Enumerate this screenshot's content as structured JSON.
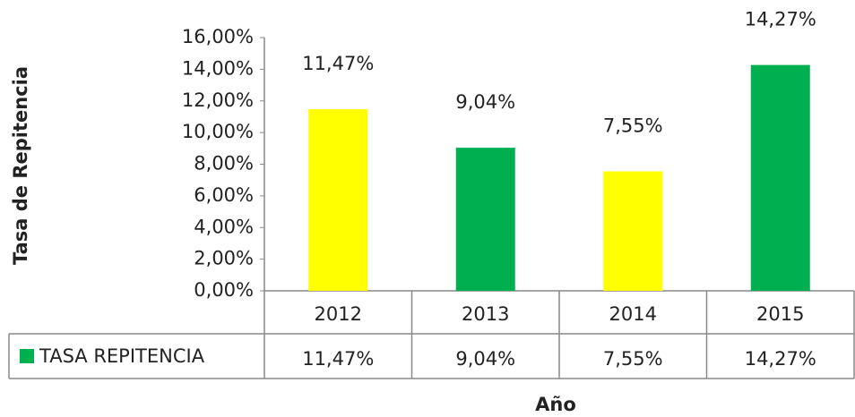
{
  "chart_data": {
    "type": "bar",
    "x_label": "Año",
    "y_label": "Tasa de Repitencia",
    "categories": [
      "2012",
      "2013",
      "2014",
      "2015"
    ],
    "series": [
      {
        "name": "TASA REPITENCIA",
        "color": "#00b050",
        "values": [
          11.47,
          9.04,
          7.55,
          14.27
        ],
        "value_labels": [
          "11,47%",
          "9,04%",
          "7,55%",
          "14,27%"
        ],
        "colors": [
          "#ffff00",
          "#00b050",
          "#ffff00",
          "#00b050"
        ]
      }
    ],
    "ylim": [
      0,
      16
    ],
    "yticks": [
      {
        "value": 0,
        "label": "0,00%"
      },
      {
        "value": 2,
        "label": "2,00%"
      },
      {
        "value": 4,
        "label": "4,00%"
      },
      {
        "value": 6,
        "label": "6,00%"
      },
      {
        "value": 8,
        "label": "8,00%"
      },
      {
        "value": 10,
        "label": "10,00%"
      },
      {
        "value": 12,
        "label": "12,00%"
      },
      {
        "value": 14,
        "label": "14,00%"
      },
      {
        "value": 16,
        "label": "16,00%"
      }
    ],
    "grid": false
  }
}
